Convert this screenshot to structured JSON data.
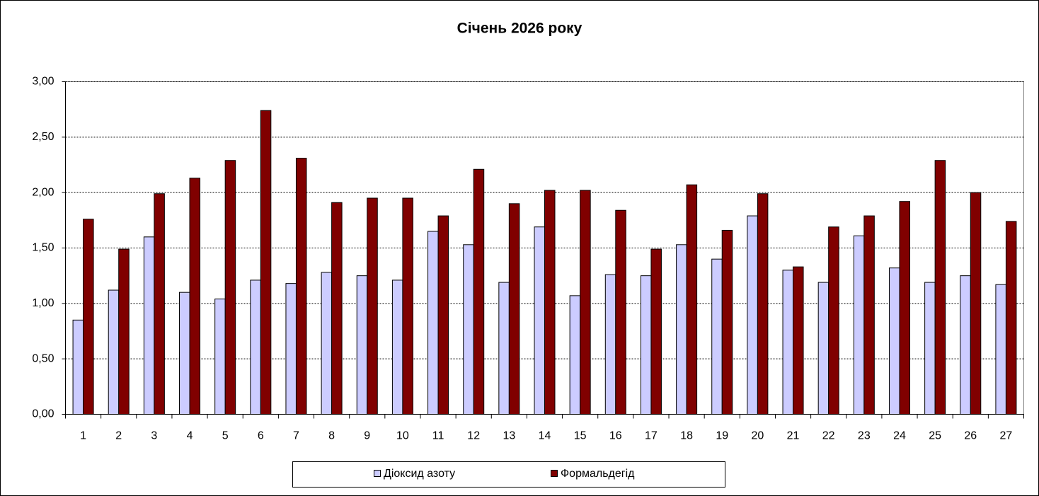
{
  "chart_data": {
    "type": "bar",
    "title": "Січень 2026 року",
    "categories": [
      "1",
      "2",
      "3",
      "4",
      "5",
      "6",
      "7",
      "8",
      "9",
      "10",
      "11",
      "12",
      "13",
      "14",
      "15",
      "16",
      "17",
      "18",
      "19",
      "20",
      "21",
      "22",
      "23",
      "24",
      "25",
      "26",
      "27"
    ],
    "series": [
      {
        "name": "Діоксид азоту",
        "color": "#ccccff",
        "values": [
          0.85,
          1.12,
          1.6,
          1.1,
          1.04,
          1.21,
          1.18,
          1.28,
          1.25,
          1.21,
          1.65,
          1.53,
          1.19,
          1.69,
          1.07,
          1.26,
          1.25,
          1.53,
          1.4,
          1.79,
          1.3,
          1.19,
          1.61,
          1.32,
          1.19,
          1.25,
          1.17
        ]
      },
      {
        "name": "Формальдегід",
        "color": "#800000",
        "values": [
          1.76,
          1.49,
          1.99,
          2.13,
          2.29,
          2.74,
          2.31,
          1.91,
          1.95,
          1.95,
          1.79,
          2.21,
          1.9,
          2.02,
          2.02,
          1.84,
          1.49,
          2.07,
          1.66,
          1.99,
          1.33,
          1.69,
          1.79,
          1.92,
          2.29,
          2.0,
          1.74
        ]
      }
    ],
    "ylim": [
      0,
      3
    ],
    "yticks": [
      {
        "value": 0,
        "label": "0,00"
      },
      {
        "value": 0.5,
        "label": "0,50"
      },
      {
        "value": 1,
        "label": "1,00"
      },
      {
        "value": 1.5,
        "label": "1,50"
      },
      {
        "value": 2,
        "label": "2,00"
      },
      {
        "value": 2.5,
        "label": "2,50"
      },
      {
        "value": 3,
        "label": "3,00"
      }
    ],
    "grid": true,
    "legend": "bottom"
  }
}
